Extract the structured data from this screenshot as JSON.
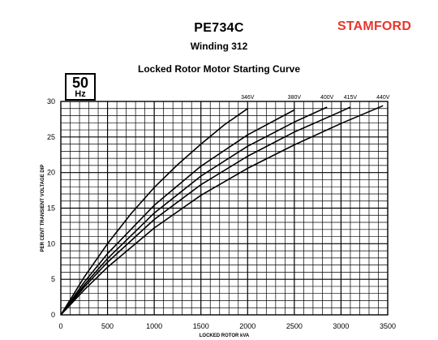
{
  "header": {
    "model": "PE734C",
    "winding": "Winding 312",
    "brand": "STAMFORD",
    "brand_color": "#e8362c"
  },
  "badge": {
    "value": "50",
    "unit": "Hz"
  },
  "chart_data": {
    "type": "line",
    "title": "Locked Rotor Motor Starting Curve",
    "xlabel": "LOCKED ROTOR kVA",
    "ylabel": "PER CENT TRANSIENT VOLTAGE DIP",
    "xlim": [
      0,
      3500
    ],
    "ylim": [
      0,
      30
    ],
    "x_ticks": [
      0,
      500,
      1000,
      1500,
      2000,
      2500,
      3000,
      3500
    ],
    "y_ticks": [
      0,
      5,
      10,
      15,
      20,
      25,
      30
    ],
    "grid": true,
    "series": [
      {
        "name": "346V",
        "x": [
          0,
          250,
          500,
          750,
          1000,
          1250,
          1500,
          1750,
          2000
        ],
        "y": [
          0,
          5.3,
          10.0,
          14.2,
          17.9,
          21.1,
          24.0,
          26.7,
          29.0
        ]
      },
      {
        "name": "380V",
        "x": [
          0,
          250,
          500,
          1000,
          1500,
          2000,
          2500,
          2500
        ],
        "y": [
          0,
          4.6,
          8.6,
          15.4,
          20.9,
          25.3,
          28.8,
          28.8
        ]
      },
      {
        "name": "400V",
        "x": [
          0,
          250,
          500,
          1000,
          1500,
          2000,
          2500,
          2850
        ],
        "y": [
          0,
          4.2,
          7.9,
          14.3,
          19.5,
          23.7,
          27.1,
          29.2
        ]
      },
      {
        "name": "415V",
        "x": [
          0,
          250,
          500,
          1000,
          1500,
          2000,
          2500,
          3000,
          3100
        ],
        "y": [
          0,
          3.9,
          7.4,
          13.4,
          18.3,
          22.3,
          25.7,
          28.6,
          29.2
        ]
      },
      {
        "name": "440V",
        "x": [
          0,
          250,
          500,
          1000,
          1500,
          2000,
          2500,
          3000,
          3450
        ],
        "y": [
          0,
          3.5,
          6.7,
          12.2,
          16.8,
          20.6,
          23.9,
          26.9,
          29.4
        ]
      }
    ]
  }
}
